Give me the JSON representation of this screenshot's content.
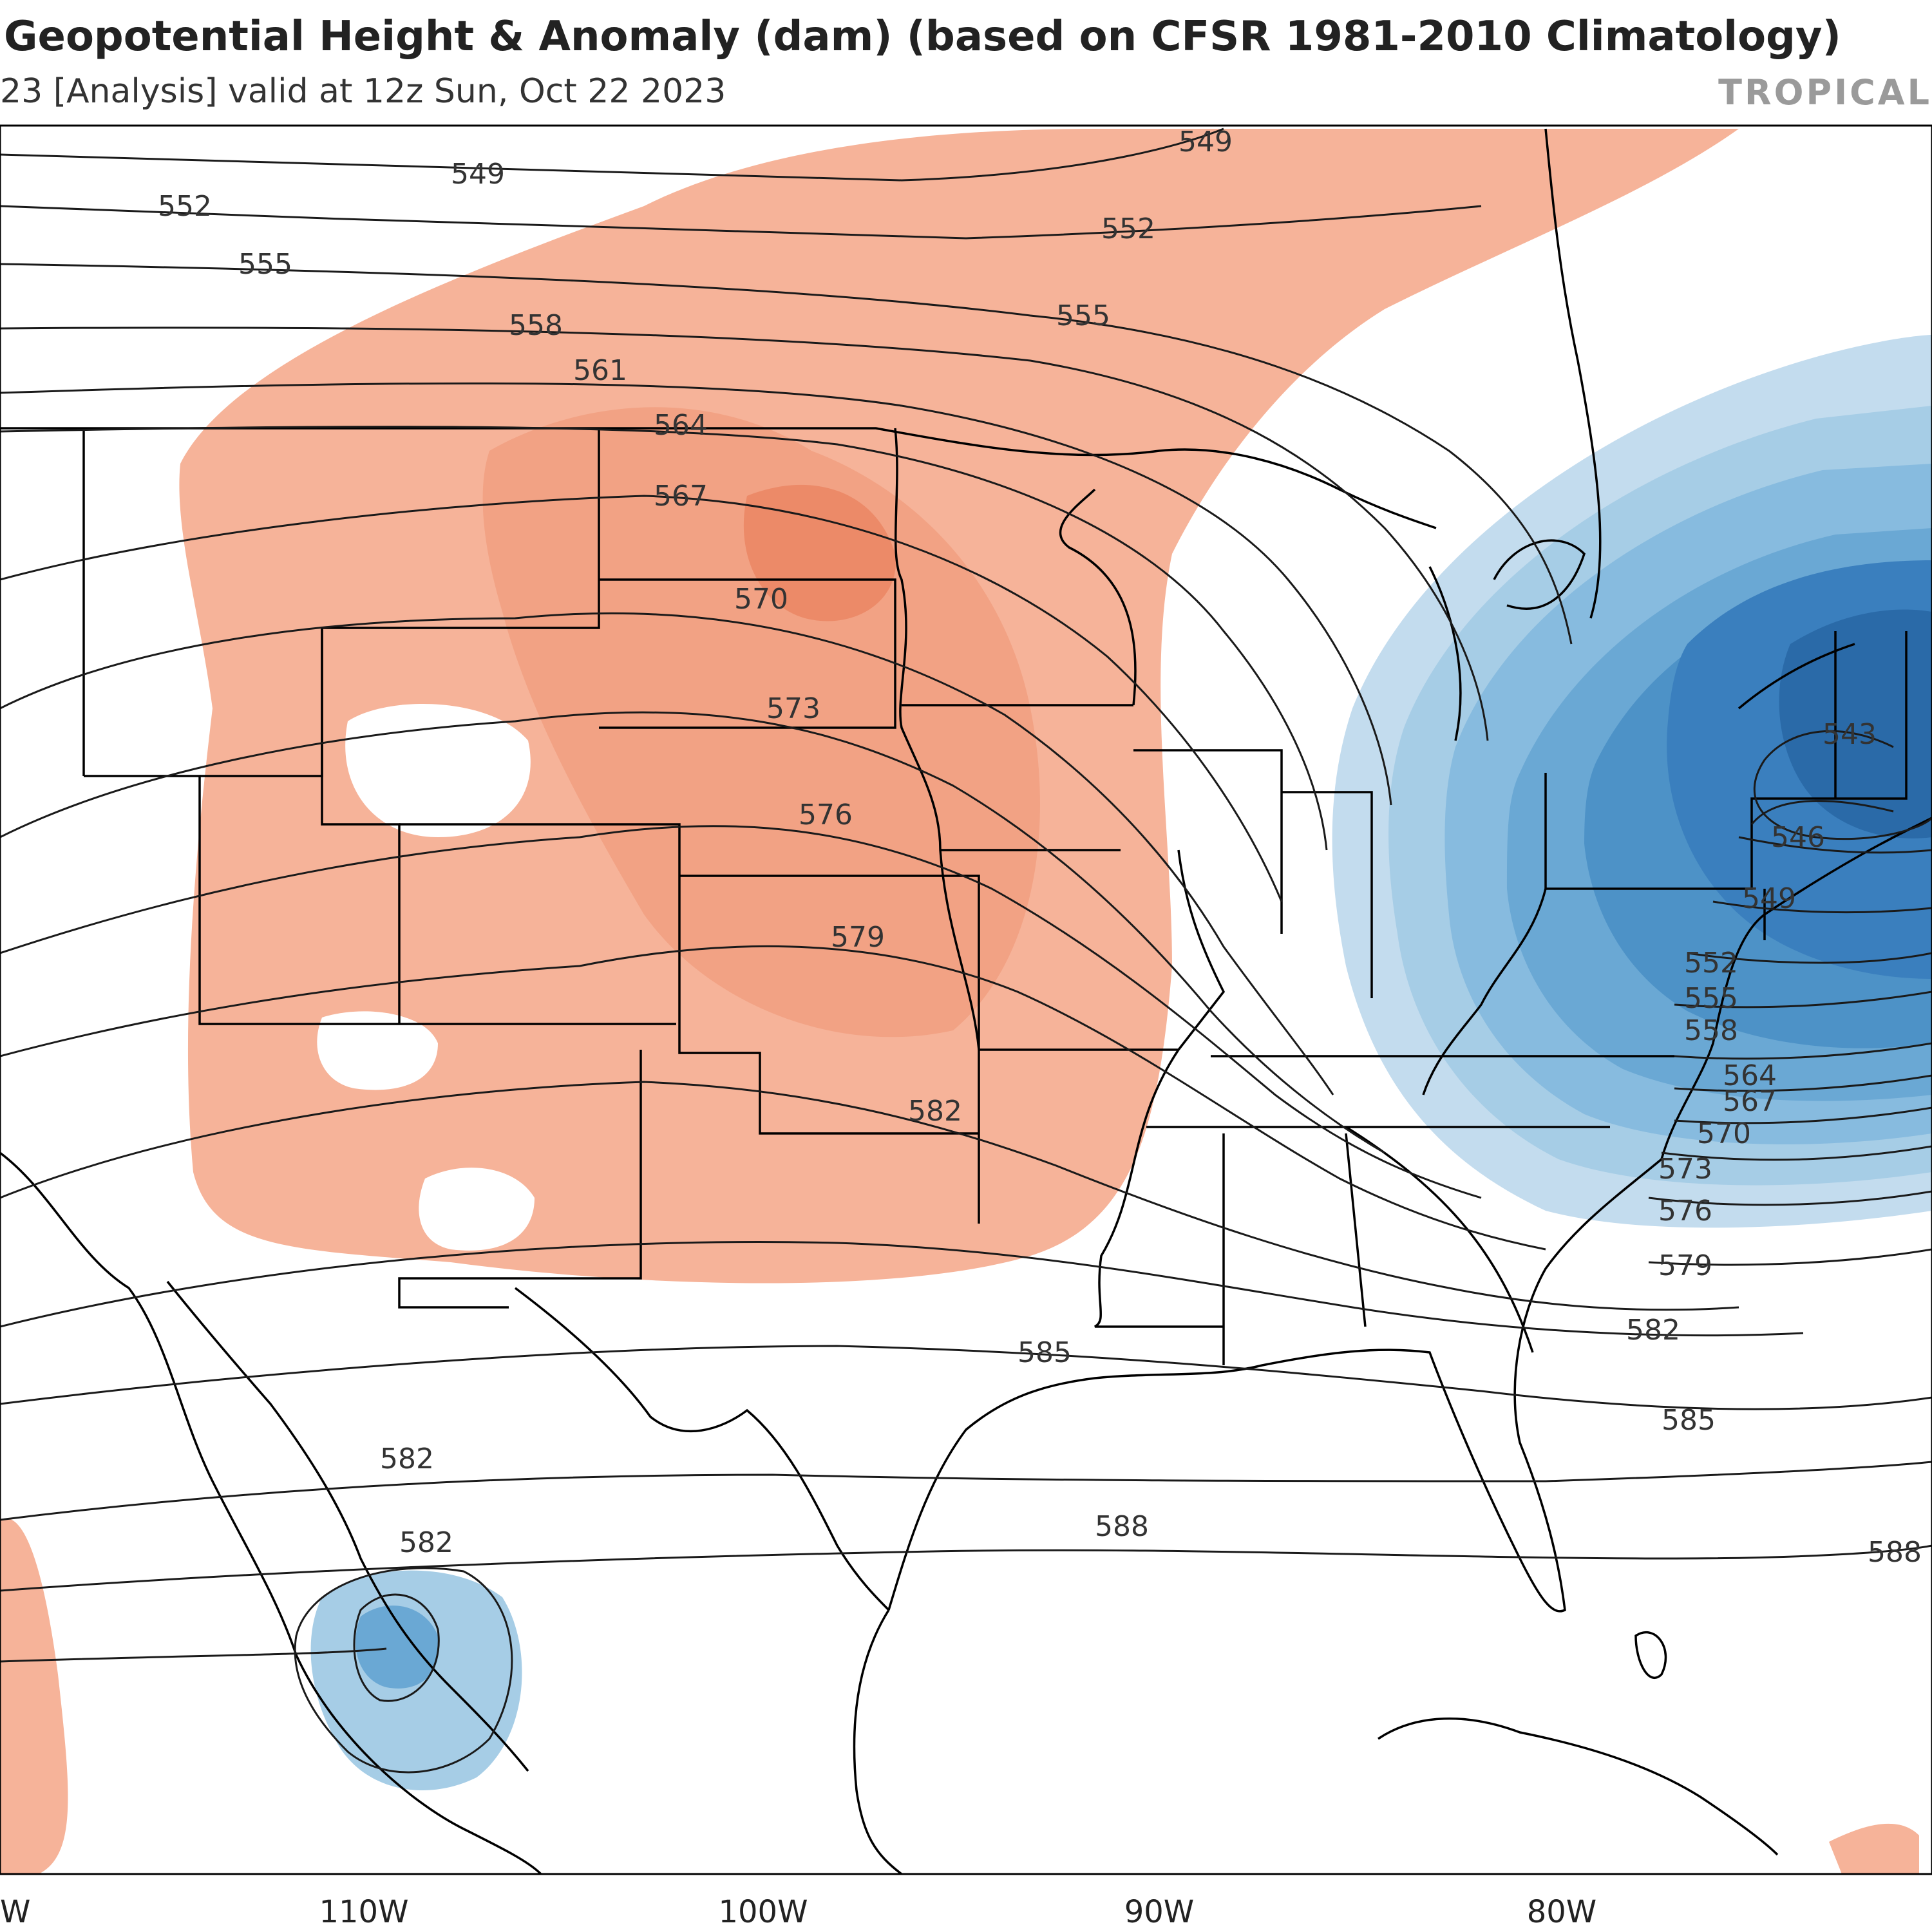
{
  "header": {
    "title": "Geopotential Height & Anomaly (dam) (based on CFSR 1981-2010 Climatology)",
    "subtitle": "23  [Analysis]   valid at 12z Sun, Oct 22 2023",
    "brand": "TROPICAL"
  },
  "axis": {
    "longitudes": [
      "W",
      "110W",
      "100W",
      "90W",
      "80W"
    ]
  },
  "contours": {
    "labels": [
      "549",
      "549",
      "552",
      "552",
      "555",
      "555",
      "558",
      "561",
      "564",
      "567",
      "570",
      "573",
      "576",
      "579",
      "582",
      "582",
      "582",
      "585",
      "585",
      "588",
      "588",
      "543",
      "546",
      "549",
      "552",
      "555",
      "558",
      "564",
      "567",
      "570",
      "573",
      "576",
      "579",
      "582"
    ]
  },
  "colors": {
    "positive_anomaly": "#f4a582",
    "positive_anomaly_strong": "#ec8a68",
    "negative_anomaly_light": "#a6cde6",
    "negative_anomaly_mid": "#6aa8d4",
    "negative_anomaly_dark": "#3a7fbe",
    "negative_anomaly_darkest": "#1f5f9f",
    "contour": "#1a1a1a",
    "boundary": "#000000"
  }
}
